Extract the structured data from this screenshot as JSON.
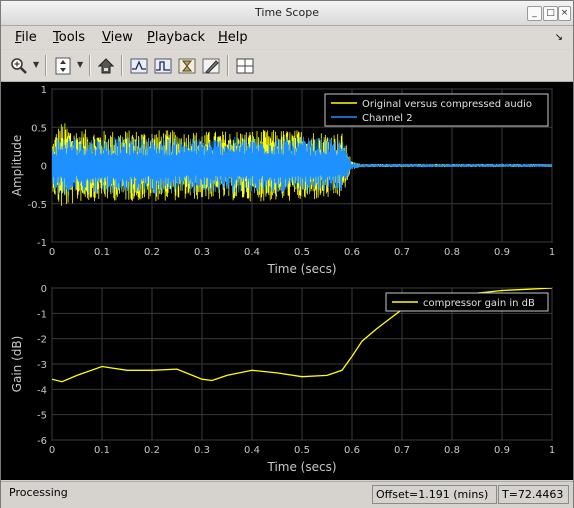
{
  "window": {
    "title": "Time Scope"
  },
  "menu": {
    "items": [
      {
        "label": "File",
        "accel": "F",
        "rest": "ile"
      },
      {
        "label": "Tools",
        "accel": "T",
        "rest": "ools"
      },
      {
        "label": "View",
        "accel": "V",
        "rest": "iew"
      },
      {
        "label": "Playback",
        "accel": "P",
        "rest": "layback"
      },
      {
        "label": "Help",
        "accel": "H",
        "rest": "elp"
      }
    ]
  },
  "toolbar": {
    "icons": [
      "zoom-in-icon",
      "scale-axes-icon",
      "highlight-simulink-icon",
      "triggers-icon",
      "cursor-measurements-icon",
      "signal-statistics-icon",
      "peak-finder-icon",
      "layout-icon"
    ]
  },
  "chart_data": [
    {
      "type": "line",
      "ylabel": "Amplitude",
      "xlabel": "Time (secs)",
      "xlim": [
        0,
        1
      ],
      "ylim": [
        -1,
        1
      ],
      "xticks": [
        "0",
        "0.1",
        "0.2",
        "0.3",
        "0.4",
        "0.5",
        "0.6",
        "0.7",
        "0.8",
        "0.9",
        "1"
      ],
      "yticks": [
        "1",
        "0.5",
        "0",
        "-0.5",
        "-1"
      ],
      "grid": true,
      "legend_position": "top-right",
      "series": [
        {
          "name": "Original versus compressed audio",
          "color": "#ffff00",
          "x": [
            0,
            0.01,
            0.02,
            0.05,
            0.1,
            0.2,
            0.3,
            0.4,
            0.5,
            0.58,
            0.6,
            0.62,
            0.7,
            1
          ],
          "envelope": [
            0.3,
            0.5,
            0.58,
            0.48,
            0.46,
            0.47,
            0.45,
            0.47,
            0.47,
            0.43,
            0.05,
            0.02,
            0.02,
            0.02
          ]
        },
        {
          "name": "Channel 2",
          "color": "#1e90ff",
          "x": [
            0,
            0.01,
            0.02,
            0.05,
            0.1,
            0.2,
            0.3,
            0.4,
            0.5,
            0.58,
            0.6,
            0.62,
            0.7,
            1
          ],
          "envelope": [
            0.25,
            0.38,
            0.4,
            0.38,
            0.37,
            0.38,
            0.36,
            0.38,
            0.38,
            0.34,
            0.05,
            0.02,
            0.02,
            0.02
          ]
        }
      ]
    },
    {
      "type": "line",
      "ylabel": "Gain (dB)",
      "xlabel": "Time (secs)",
      "xlim": [
        0,
        1
      ],
      "ylim": [
        -6,
        0
      ],
      "xticks": [
        "0",
        "0.1",
        "0.2",
        "0.3",
        "0.4",
        "0.5",
        "0.6",
        "0.7",
        "0.8",
        "0.9",
        "1"
      ],
      "yticks": [
        "0",
        "-1",
        "-2",
        "-3",
        "-4",
        "-5",
        "-6"
      ],
      "grid": true,
      "legend_position": "top-right",
      "series": [
        {
          "name": "compressor gain in dB",
          "color": "#ffff00",
          "x": [
            0,
            0.02,
            0.05,
            0.1,
            0.15,
            0.2,
            0.25,
            0.3,
            0.32,
            0.35,
            0.4,
            0.45,
            0.5,
            0.55,
            0.58,
            0.6,
            0.62,
            0.65,
            0.7,
            0.75,
            0.8,
            0.85,
            0.9,
            0.95,
            1
          ],
          "y": [
            -3.6,
            -3.7,
            -3.45,
            -3.1,
            -3.25,
            -3.25,
            -3.2,
            -3.6,
            -3.65,
            -3.45,
            -3.25,
            -3.35,
            -3.5,
            -3.45,
            -3.25,
            -2.7,
            -2.1,
            -1.6,
            -0.85,
            -0.5,
            -0.3,
            -0.2,
            -0.1,
            -0.05,
            0
          ]
        }
      ]
    }
  ],
  "status": {
    "text": "Processing",
    "offset": "Offset=1.191 (mins)",
    "time": "T=72.4463"
  }
}
